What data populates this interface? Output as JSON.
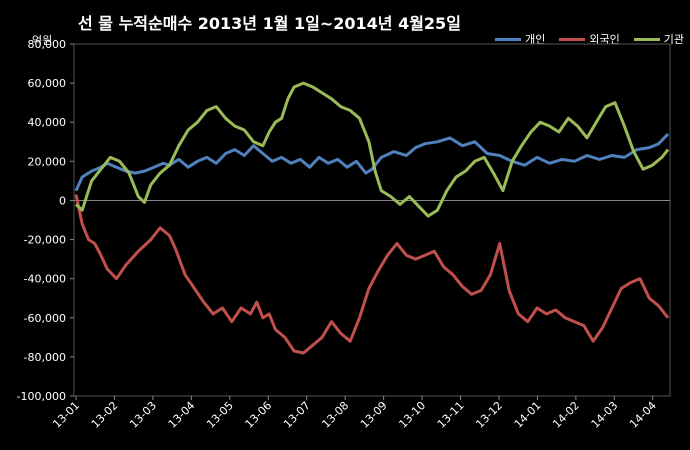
{
  "chart_data": {
    "type": "line",
    "title": "선 물 누적순매수 2013년 1월 1일~2014년 4월25일",
    "unit_label": "억원",
    "ylim": [
      -100000,
      80000
    ],
    "y_ticks": [
      "-100,000",
      "-80,000",
      "-60,000",
      "-40,000",
      "-20,000",
      "0",
      "20,000",
      "40,000",
      "60,000",
      "80,000"
    ],
    "x_ticks": [
      "13-01",
      "13-02",
      "13-03",
      "13-04",
      "13-05",
      "13-06",
      "13-07",
      "13-08",
      "13-09",
      "13-10",
      "13-11",
      "13-12",
      "14-01",
      "14-02",
      "14-03",
      "14-04"
    ],
    "legend_position": "top-right",
    "grid": false,
    "series": [
      {
        "name": "개인",
        "color": "#4f81bd",
        "values": [
          [
            0.0,
            5000
          ],
          [
            0.2,
            12000
          ],
          [
            0.5,
            15000
          ],
          [
            0.8,
            17000
          ],
          [
            1.0,
            19000
          ],
          [
            1.3,
            17000
          ],
          [
            1.6,
            15000
          ],
          [
            1.9,
            14000
          ],
          [
            2.2,
            15000
          ],
          [
            2.5,
            17000
          ],
          [
            2.8,
            19000
          ],
          [
            3.0,
            18000
          ],
          [
            3.3,
            21000
          ],
          [
            3.6,
            17000
          ],
          [
            3.9,
            20000
          ],
          [
            4.2,
            22000
          ],
          [
            4.5,
            19000
          ],
          [
            4.8,
            24000
          ],
          [
            5.1,
            26000
          ],
          [
            5.4,
            23000
          ],
          [
            5.7,
            28000
          ],
          [
            6.0,
            24000
          ],
          [
            6.3,
            20000
          ],
          [
            6.6,
            22000
          ],
          [
            6.9,
            19000
          ],
          [
            7.2,
            21000
          ],
          [
            7.5,
            17000
          ],
          [
            7.8,
            22000
          ],
          [
            8.1,
            19000
          ],
          [
            8.4,
            21000
          ],
          [
            8.7,
            17000
          ],
          [
            9.0,
            20000
          ],
          [
            9.3,
            14000
          ],
          [
            9.5,
            16000
          ],
          [
            9.8,
            22000
          ],
          [
            10.2,
            25000
          ],
          [
            10.6,
            23000
          ],
          [
            10.9,
            27000
          ],
          [
            11.2,
            29000
          ],
          [
            11.6,
            30000
          ],
          [
            12.0,
            32000
          ],
          [
            12.4,
            28000
          ],
          [
            12.8,
            30000
          ],
          [
            13.2,
            24000
          ],
          [
            13.6,
            23000
          ],
          [
            14.0,
            20000
          ],
          [
            14.4,
            18000
          ],
          [
            14.8,
            22000
          ],
          [
            15.2,
            19000
          ],
          [
            15.6,
            21000
          ],
          [
            16.0,
            20000
          ],
          [
            16.4,
            23000
          ],
          [
            16.8,
            21000
          ],
          [
            17.2,
            23000
          ],
          [
            17.6,
            22000
          ],
          [
            18.0,
            26000
          ],
          [
            18.4,
            27000
          ],
          [
            18.7,
            29000
          ],
          [
            19.0,
            34000
          ]
        ]
      },
      {
        "name": "외국인",
        "color": "#c0504d",
        "values": [
          [
            0.0,
            3000
          ],
          [
            0.2,
            -12000
          ],
          [
            0.4,
            -20000
          ],
          [
            0.6,
            -22000
          ],
          [
            0.8,
            -28000
          ],
          [
            1.0,
            -35000
          ],
          [
            1.3,
            -40000
          ],
          [
            1.6,
            -33000
          ],
          [
            2.0,
            -26000
          ],
          [
            2.4,
            -20000
          ],
          [
            2.7,
            -14000
          ],
          [
            3.0,
            -18000
          ],
          [
            3.2,
            -25000
          ],
          [
            3.5,
            -38000
          ],
          [
            3.8,
            -45000
          ],
          [
            4.1,
            -52000
          ],
          [
            4.4,
            -58000
          ],
          [
            4.7,
            -55000
          ],
          [
            5.0,
            -62000
          ],
          [
            5.3,
            -55000
          ],
          [
            5.6,
            -58000
          ],
          [
            5.8,
            -52000
          ],
          [
            6.0,
            -60000
          ],
          [
            6.2,
            -58000
          ],
          [
            6.4,
            -66000
          ],
          [
            6.7,
            -70000
          ],
          [
            7.0,
            -77000
          ],
          [
            7.3,
            -78000
          ],
          [
            7.6,
            -74000
          ],
          [
            7.9,
            -70000
          ],
          [
            8.2,
            -62000
          ],
          [
            8.5,
            -68000
          ],
          [
            8.8,
            -72000
          ],
          [
            9.1,
            -60000
          ],
          [
            9.4,
            -45000
          ],
          [
            9.7,
            -36000
          ],
          [
            10.0,
            -28000
          ],
          [
            10.3,
            -22000
          ],
          [
            10.6,
            -28000
          ],
          [
            10.9,
            -30000
          ],
          [
            11.2,
            -28000
          ],
          [
            11.5,
            -26000
          ],
          [
            11.8,
            -34000
          ],
          [
            12.1,
            -38000
          ],
          [
            12.4,
            -44000
          ],
          [
            12.7,
            -48000
          ],
          [
            13.0,
            -46000
          ],
          [
            13.3,
            -38000
          ],
          [
            13.6,
            -22000
          ],
          [
            13.9,
            -46000
          ],
          [
            14.2,
            -58000
          ],
          [
            14.5,
            -62000
          ],
          [
            14.8,
            -55000
          ],
          [
            15.1,
            -58000
          ],
          [
            15.4,
            -56000
          ],
          [
            15.7,
            -60000
          ],
          [
            16.0,
            -62000
          ],
          [
            16.3,
            -64000
          ],
          [
            16.6,
            -72000
          ],
          [
            16.9,
            -65000
          ],
          [
            17.2,
            -55000
          ],
          [
            17.5,
            -45000
          ],
          [
            17.8,
            -42000
          ],
          [
            18.1,
            -40000
          ],
          [
            18.4,
            -50000
          ],
          [
            18.7,
            -54000
          ],
          [
            19.0,
            -60000
          ]
        ]
      },
      {
        "name": "기관",
        "color": "#9bbb59",
        "values": [
          [
            0.0,
            -2000
          ],
          [
            0.2,
            -5000
          ],
          [
            0.5,
            10000
          ],
          [
            0.8,
            16000
          ],
          [
            1.1,
            22000
          ],
          [
            1.4,
            20000
          ],
          [
            1.7,
            14000
          ],
          [
            2.0,
            2000
          ],
          [
            2.2,
            -1000
          ],
          [
            2.4,
            8000
          ],
          [
            2.7,
            14000
          ],
          [
            3.0,
            18000
          ],
          [
            3.3,
            28000
          ],
          [
            3.6,
            36000
          ],
          [
            3.9,
            40000
          ],
          [
            4.2,
            46000
          ],
          [
            4.5,
            48000
          ],
          [
            4.8,
            42000
          ],
          [
            5.1,
            38000
          ],
          [
            5.4,
            36000
          ],
          [
            5.7,
            30000
          ],
          [
            6.0,
            28000
          ],
          [
            6.2,
            35000
          ],
          [
            6.4,
            40000
          ],
          [
            6.6,
            42000
          ],
          [
            6.8,
            52000
          ],
          [
            7.0,
            58000
          ],
          [
            7.3,
            60000
          ],
          [
            7.6,
            58000
          ],
          [
            7.9,
            55000
          ],
          [
            8.2,
            52000
          ],
          [
            8.5,
            48000
          ],
          [
            8.8,
            46000
          ],
          [
            9.1,
            42000
          ],
          [
            9.4,
            30000
          ],
          [
            9.6,
            15000
          ],
          [
            9.8,
            5000
          ],
          [
            10.1,
            2000
          ],
          [
            10.4,
            -2000
          ],
          [
            10.7,
            2000
          ],
          [
            11.0,
            -3000
          ],
          [
            11.3,
            -8000
          ],
          [
            11.6,
            -5000
          ],
          [
            11.9,
            5000
          ],
          [
            12.2,
            12000
          ],
          [
            12.5,
            15000
          ],
          [
            12.8,
            20000
          ],
          [
            13.1,
            22000
          ],
          [
            13.4,
            14000
          ],
          [
            13.7,
            5000
          ],
          [
            14.0,
            20000
          ],
          [
            14.3,
            28000
          ],
          [
            14.6,
            35000
          ],
          [
            14.9,
            40000
          ],
          [
            15.2,
            38000
          ],
          [
            15.5,
            35000
          ],
          [
            15.8,
            42000
          ],
          [
            16.1,
            38000
          ],
          [
            16.4,
            32000
          ],
          [
            16.7,
            40000
          ],
          [
            17.0,
            48000
          ],
          [
            17.3,
            50000
          ],
          [
            17.6,
            38000
          ],
          [
            17.9,
            25000
          ],
          [
            18.2,
            16000
          ],
          [
            18.5,
            18000
          ],
          [
            18.8,
            22000
          ],
          [
            19.0,
            26000
          ]
        ]
      }
    ]
  }
}
